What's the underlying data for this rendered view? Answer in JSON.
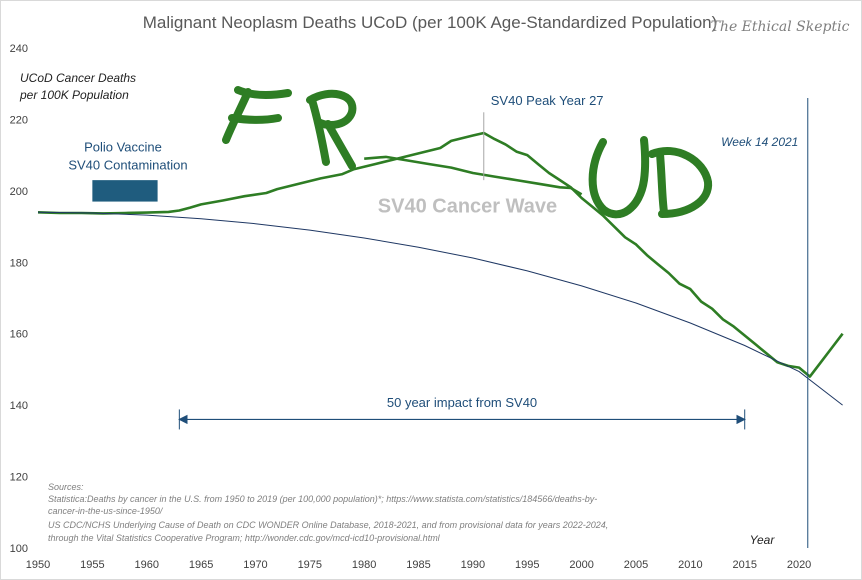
{
  "chart_data": {
    "type": "line",
    "title": "Malignant Neoplasm Deaths UCoD (per 100K Age-Standardized Population)",
    "watermark": "The Ethical Skeptic",
    "ylabel": [
      "UCoD Cancer Deaths",
      "per 100K Population"
    ],
    "xlabel": "Year",
    "xlim": [
      1950,
      2024.5
    ],
    "ylim": [
      100,
      240
    ],
    "x_ticks": [
      1950,
      1955,
      1960,
      1965,
      1970,
      1975,
      1980,
      1985,
      1990,
      1995,
      2000,
      2005,
      2010,
      2015,
      2020
    ],
    "y_ticks": [
      100,
      120,
      140,
      160,
      180,
      200,
      220,
      240
    ],
    "colors": {
      "actual": "#2e7d24",
      "baseline": "#1f3864",
      "annotation": "#1f4e79",
      "handwriting": "#2e7d24"
    },
    "series": [
      {
        "kind": "actual",
        "points": [
          [
            1950,
            194
          ],
          [
            1952,
            193.8
          ],
          [
            1954,
            193.8
          ],
          [
            1956,
            193.7
          ],
          [
            1958,
            193.8
          ],
          [
            1960,
            193.9
          ],
          [
            1962,
            194.1
          ],
          [
            1963,
            194.5
          ],
          [
            1964,
            195.3
          ],
          [
            1965,
            196.2
          ],
          [
            1967,
            197.3
          ],
          [
            1969,
            198.5
          ],
          [
            1971,
            199.4
          ],
          [
            1972,
            200.5
          ],
          [
            1974,
            202
          ],
          [
            1976,
            203.5
          ],
          [
            1978,
            204.7
          ],
          [
            1979,
            206
          ],
          [
            1981,
            207.5
          ],
          [
            1983,
            209
          ],
          [
            1985,
            210.5
          ],
          [
            1987,
            212
          ],
          [
            1988,
            214
          ],
          [
            1990,
            215.5
          ],
          [
            1991,
            216.2
          ],
          [
            1992,
            214.5
          ],
          [
            1993,
            213
          ],
          [
            1994,
            211
          ],
          [
            1995,
            210
          ],
          [
            1996,
            207.5
          ],
          [
            1997,
            205
          ],
          [
            1998,
            203
          ],
          [
            1999,
            201
          ],
          [
            2000,
            198
          ],
          [
            2001,
            195.5
          ],
          [
            2002,
            193
          ],
          [
            2003,
            190
          ],
          [
            2004,
            187
          ],
          [
            2005,
            185
          ],
          [
            2006,
            182
          ],
          [
            2007,
            179.5
          ],
          [
            2008,
            177
          ],
          [
            2009,
            174
          ],
          [
            2010,
            172.5
          ],
          [
            2011,
            169
          ],
          [
            2012,
            167
          ],
          [
            2013,
            164
          ],
          [
            2014,
            162
          ],
          [
            2015,
            159.5
          ],
          [
            2016,
            157
          ],
          [
            2017,
            154.5
          ],
          [
            2018,
            152
          ],
          [
            2019,
            151
          ],
          [
            2020,
            150.5
          ],
          [
            2021,
            148
          ],
          [
            2022,
            152
          ],
          [
            2023,
            156
          ],
          [
            2024,
            160
          ]
        ]
      },
      {
        "kind": "sv40-wave",
        "points": [
          [
            1980,
            209
          ],
          [
            1982,
            209.5
          ],
          [
            1984,
            208.5
          ],
          [
            1986,
            207.5
          ],
          [
            1988,
            206.5
          ],
          [
            1990,
            205
          ],
          [
            1992,
            204
          ],
          [
            1994,
            203
          ],
          [
            1996,
            202
          ],
          [
            1998,
            201
          ],
          [
            1999,
            200.8
          ],
          [
            2000,
            199
          ]
        ]
      },
      {
        "kind": "baseline",
        "points": [
          [
            1950,
            194
          ],
          [
            1955,
            193.8
          ],
          [
            1960,
            193.2
          ],
          [
            1965,
            192.2
          ],
          [
            1970,
            190.8
          ],
          [
            1975,
            189
          ],
          [
            1980,
            186.8
          ],
          [
            1985,
            184.2
          ],
          [
            1990,
            181.2
          ],
          [
            1995,
            177.6
          ],
          [
            2000,
            173.4
          ],
          [
            2005,
            168.6
          ],
          [
            2010,
            163
          ],
          [
            2015,
            156.7
          ],
          [
            2020,
            149.4
          ],
          [
            2024,
            140
          ]
        ]
      }
    ],
    "annotations": {
      "polio": [
        "Polio Vaccine",
        "SV40 Contamination"
      ],
      "polio_range": [
        1955,
        1961
      ],
      "peak": "SV40 Peak Year 27",
      "peak_year": 1991,
      "week": "Week 14 2021",
      "week_year": 2020.8,
      "wave": "SV40 Cancer Wave",
      "impact": "50 year impact from SV40",
      "impact_range": [
        1963,
        2015
      ],
      "handwriting_left": "FR",
      "handwriting_right": "UD"
    },
    "sources": [
      "Sources:",
      "Statistica:Deaths by cancer in the U.S. from 1950 to 2019 (per 100,000 population)*; https://www.statista.com/statistics/184566/deaths-by-",
      "cancer-in-the-us-since-1950/",
      "US CDC/NCHS Underlying Cause of Death on CDC WONDER Online Database, 2018-2021, and from provisional data for years 2022-2024,",
      "through the Vital Statistics Cooperative Program; http://wonder.cdc.gov/mcd-icd10-provisional.html"
    ]
  }
}
